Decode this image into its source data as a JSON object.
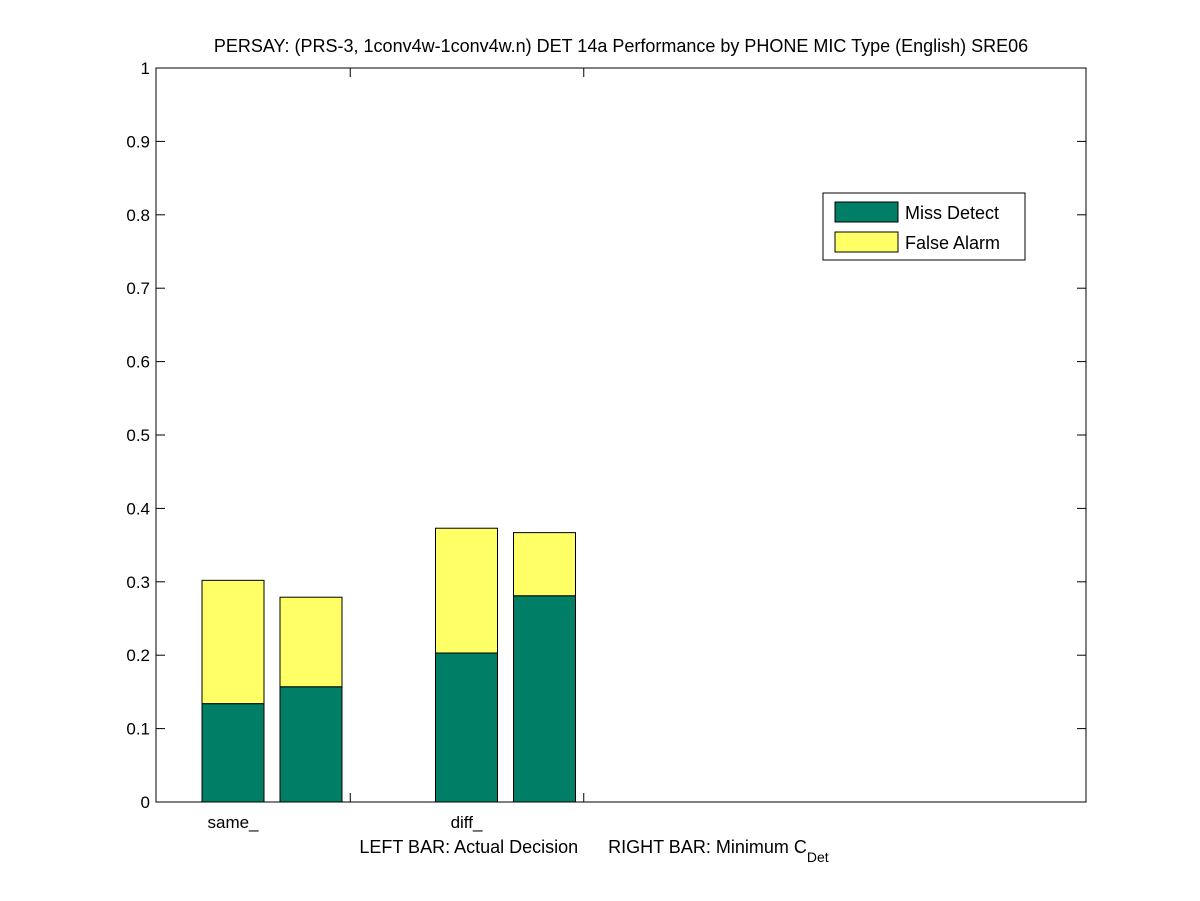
{
  "chart_data": {
    "type": "bar",
    "stacked": true,
    "title": "PERSAY: (PRS-3, 1conv4w-1conv4w.n) DET 14a Performance by PHONE MIC Type (English) SRE06",
    "xlabel_parts": [
      "LEFT BAR: Actual Decision",
      "RIGHT BAR: Minimum C",
      "Det"
    ],
    "ylim": [
      0,
      1
    ],
    "yticks": [
      "0",
      "0.1",
      "0.2",
      "0.3",
      "0.4",
      "0.5",
      "0.6",
      "0.7",
      "0.8",
      "0.9",
      "1"
    ],
    "categories": [
      "same_",
      "diff_"
    ],
    "bars_per_category": [
      "Actual Decision",
      "Minimum C_Det"
    ],
    "series": [
      {
        "name": "Miss Detect",
        "color": "#007f66",
        "values": [
          [
            0.134,
            0.157
          ],
          [
            0.203,
            0.281
          ]
        ]
      },
      {
        "name": "False Alarm",
        "color": "#ffff66",
        "values": [
          [
            0.168,
            0.122
          ],
          [
            0.17,
            0.086
          ]
        ]
      }
    ],
    "legend_position": "top-right",
    "grid": false
  }
}
